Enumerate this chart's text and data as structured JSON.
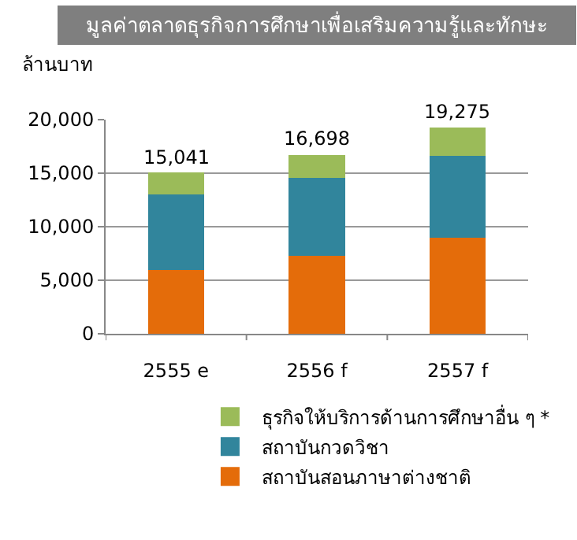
{
  "chart_data": {
    "type": "bar",
    "stacked": true,
    "title": "มูลค่าตลาดธุรกิจการศึกษาเพื่อเสริมความรู้และทักษะ",
    "ylabel": "ล้านบาท",
    "categories": [
      "2555 e",
      "2556 f",
      "2557 f"
    ],
    "series": [
      {
        "name": "สถาบันสอนภาษาต่างชาติ",
        "color": "#e46c0a",
        "values": [
          5950,
          7300,
          8950
        ]
      },
      {
        "name": "สถาบันกวดวิชา",
        "color": "#31859c",
        "values": [
          7050,
          7250,
          7650
        ]
      },
      {
        "name": "ธุรกิจให้บริการด้านการศึกษาอื่น ๆ *",
        "color": "#9bbb59",
        "values": [
          2041,
          2148,
          2675
        ]
      }
    ],
    "totals": [
      "15,041",
      "16,698",
      "19,275"
    ],
    "ylim": [
      0,
      20000
    ],
    "yticks": [
      {
        "value": 0,
        "label": "0"
      },
      {
        "value": 5000,
        "label": "5,000"
      },
      {
        "value": 10000,
        "label": "10,000"
      },
      {
        "value": 15000,
        "label": "15,000"
      },
      {
        "value": 20000,
        "label": "20,000"
      }
    ],
    "grid": "y",
    "legend": "bottom"
  }
}
